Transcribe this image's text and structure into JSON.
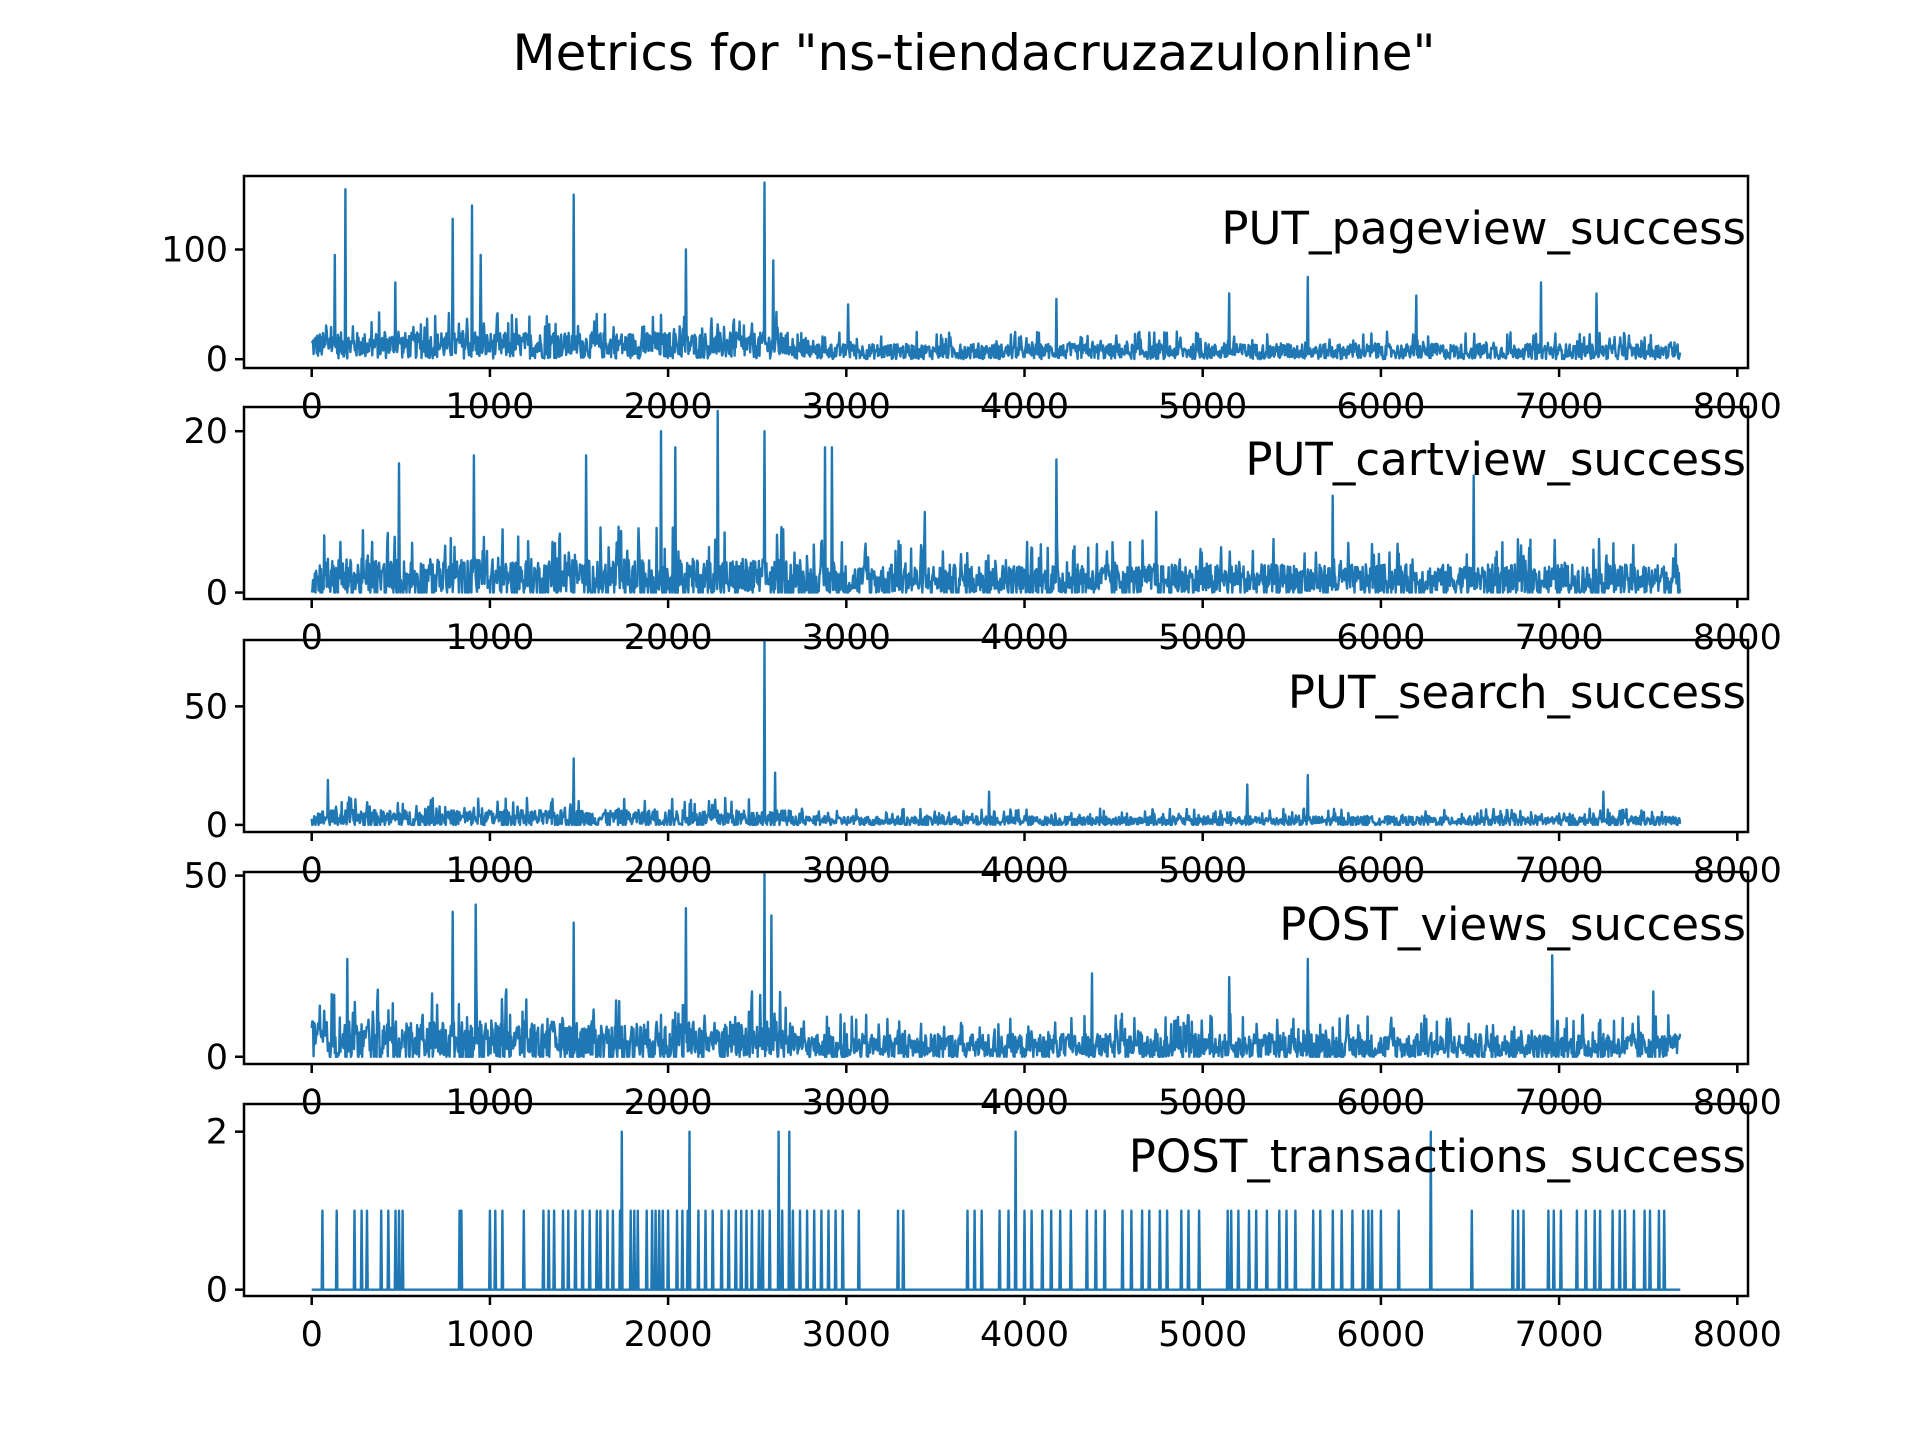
{
  "chart_data": {
    "type": "line",
    "title": "Metrics for \"ns-tiendacruzazulonline\"",
    "color": "#1f77b4",
    "x_range": [
      0,
      7680
    ],
    "xlim": [
      -380,
      8060
    ],
    "x_ticks": [
      0,
      1000,
      2000,
      3000,
      4000,
      5000,
      6000,
      7000,
      8000
    ],
    "grid": false,
    "legend": "none",
    "panels": [
      {
        "name": "PUT_pageview_success",
        "ylim": [
          -8,
          167
        ],
        "y_ticks": [
          0,
          100
        ],
        "baseline": 22,
        "baseline_late": 12,
        "noise": 24,
        "noise_late": 14,
        "peaks": [
          [
            130,
            95
          ],
          [
            190,
            155
          ],
          [
            470,
            70
          ],
          [
            790,
            128
          ],
          [
            900,
            140
          ],
          [
            950,
            95
          ],
          [
            1470,
            150
          ],
          [
            2100,
            100
          ],
          [
            2540,
            161
          ],
          [
            2590,
            90
          ],
          [
            3010,
            50
          ],
          [
            4180,
            55
          ],
          [
            5150,
            60
          ],
          [
            5590,
            75
          ],
          [
            6200,
            58
          ],
          [
            7210,
            60
          ],
          [
            6900,
            70
          ]
        ]
      },
      {
        "name": "PUT_cartview_success",
        "ylim": [
          -0.8,
          23
        ],
        "y_ticks": [
          0,
          20
        ],
        "baseline": 2,
        "baseline_late": 2,
        "noise": 5,
        "noise_late": 4,
        "peaks": [
          [
            490,
            16
          ],
          [
            910,
            17
          ],
          [
            1540,
            17
          ],
          [
            1960,
            20
          ],
          [
            2040,
            18
          ],
          [
            2280,
            22.5
          ],
          [
            2540,
            20
          ],
          [
            2880,
            18
          ],
          [
            2920,
            18
          ],
          [
            4180,
            16.5
          ],
          [
            5730,
            12
          ],
          [
            6520,
            14.5
          ],
          [
            3440,
            10
          ],
          [
            4740,
            10
          ]
        ]
      },
      {
        "name": "PUT_search_success",
        "ylim": [
          -3,
          78
        ],
        "y_ticks": [
          0,
          50
        ],
        "baseline": 4,
        "baseline_late": 2.5,
        "noise": 7,
        "noise_late": 4,
        "peaks": [
          [
            90,
            19
          ],
          [
            1470,
            28
          ],
          [
            2540,
            78
          ],
          [
            2600,
            22
          ],
          [
            3800,
            14
          ],
          [
            5250,
            17
          ],
          [
            5590,
            21
          ],
          [
            7250,
            14
          ]
        ]
      },
      {
        "name": "POST_views_success",
        "ylim": [
          -2,
          51
        ],
        "y_ticks": [
          0,
          50
        ],
        "baseline": 6,
        "baseline_late": 4,
        "noise": 11,
        "noise_late": 7,
        "peaks": [
          [
            200,
            27
          ],
          [
            790,
            40
          ],
          [
            920,
            42
          ],
          [
            1470,
            37
          ],
          [
            2100,
            41
          ],
          [
            2540,
            50.5
          ],
          [
            2580,
            39
          ],
          [
            4380,
            23
          ],
          [
            5150,
            22
          ],
          [
            5590,
            27
          ],
          [
            6960,
            28
          ],
          [
            7530,
            18
          ]
        ]
      },
      {
        "name": "POST_transactions_success",
        "ylim": [
          -0.08,
          2.35
        ],
        "y_ticks": [
          0,
          2
        ],
        "binary": true,
        "ones": [
          60,
          140,
          240,
          280,
          310,
          390,
          430,
          470,
          490,
          510,
          830,
          840,
          1000,
          1030,
          1070,
          1190,
          1300,
          1330,
          1360,
          1410,
          1440,
          1480,
          1520,
          1560,
          1600,
          1620,
          1660,
          1690,
          1730,
          1790,
          1810,
          1830,
          1880,
          1910,
          1930,
          1950,
          1970,
          2000,
          2050,
          2080,
          2110,
          2170,
          2210,
          2250,
          2300,
          2340,
          2380,
          2410,
          2440,
          2470,
          2510,
          2530,
          2570,
          2640,
          2700,
          2740,
          2780,
          2820,
          2860,
          2900,
          2940,
          2980,
          3070,
          3290,
          3320,
          3680,
          3720,
          3760,
          3860,
          3910,
          4000,
          4040,
          4100,
          4150,
          4200,
          4260,
          4350,
          4400,
          4450,
          4550,
          4600,
          4660,
          4700,
          4760,
          4800,
          4880,
          4920,
          4980,
          5140,
          5160,
          5200,
          5260,
          5300,
          5360,
          5430,
          5470,
          5520,
          5620,
          5660,
          5730,
          5780,
          5840,
          5900,
          5930,
          5950,
          6000,
          6100,
          6510,
          6740,
          6770,
          6800,
          6940,
          6970,
          7010,
          7100,
          7150,
          7200,
          7230,
          7300,
          7340,
          7370,
          7420,
          7480,
          7510,
          7560,
          7590
        ],
        "twos": [
          1740,
          2120,
          2620,
          2680,
          3950,
          6280
        ]
      }
    ]
  }
}
